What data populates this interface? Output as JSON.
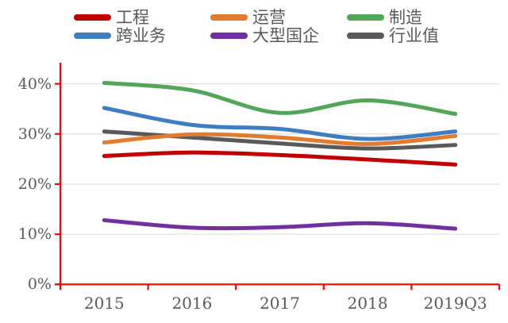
{
  "chart_data": {
    "type": "line",
    "smooth": true,
    "title": "",
    "xlabel": "",
    "ylabel": "",
    "categories": [
      "2015",
      "2016",
      "2017",
      "2018",
      "2019Q3"
    ],
    "series": [
      {
        "name": "工程",
        "color": "#C00000",
        "values": [
          25.6,
          26.3,
          25.8,
          24.9,
          23.9
        ]
      },
      {
        "name": "运营",
        "color": "#E07B2F",
        "values": [
          28.3,
          29.9,
          29.3,
          28.0,
          29.6
        ]
      },
      {
        "name": "制造",
        "color": "#53A557",
        "values": [
          40.2,
          38.7,
          34.2,
          36.7,
          34.0
        ]
      },
      {
        "name": "跨业务",
        "color": "#3E7DBF",
        "values": [
          35.2,
          31.8,
          31.0,
          29.0,
          30.5
        ]
      },
      {
        "name": "大型国企",
        "color": "#7030A0",
        "values": [
          12.8,
          11.3,
          11.4,
          12.2,
          11.1
        ]
      },
      {
        "name": "行业值",
        "color": "#595959",
        "values": [
          30.5,
          29.3,
          28.1,
          27.1,
          27.8
        ]
      }
    ],
    "y_ticks": [
      "0%",
      "10%",
      "20%",
      "30%",
      "40%"
    ],
    "y_tick_values": [
      0,
      10,
      20,
      30,
      40
    ],
    "ylim": [
      0,
      44.2
    ],
    "grid": "horizontal",
    "legend_position": "top",
    "colors": {
      "axis": "#FF0000",
      "gridline": "#D9D9D9",
      "tick_label": "#595959",
      "legend_label": "#595959",
      "background": "#FFFFFF"
    }
  }
}
